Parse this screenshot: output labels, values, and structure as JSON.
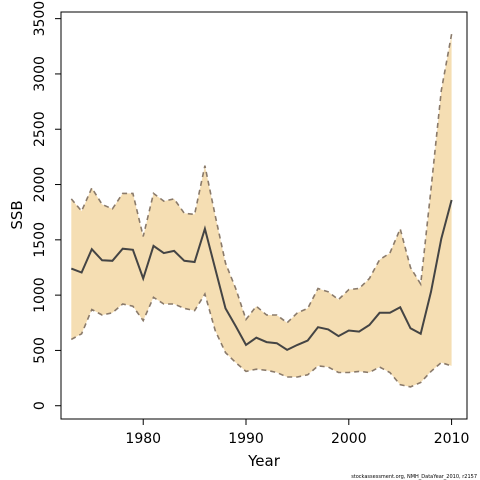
{
  "chart_data": {
    "type": "line",
    "xlabel": "Year",
    "ylabel": "SSB",
    "xlim": [
      1972,
      2011.5
    ],
    "ylim": [
      -120,
      3560
    ],
    "x_ticks": [
      1980,
      1990,
      2000,
      2010
    ],
    "y_ticks": [
      0,
      500,
      1000,
      1500,
      2000,
      2500,
      3000,
      3500
    ],
    "grid": false,
    "legend": "none",
    "colors": {
      "band": "#f5deb3",
      "ssb_line": "#444444",
      "bounds": "#8a7a6a",
      "axis": "#000000"
    },
    "x": [
      1973,
      1974,
      1975,
      1976,
      1977,
      1978,
      1979,
      1980,
      1981,
      1982,
      1983,
      1984,
      1985,
      1986,
      1987,
      1988,
      1989,
      1990,
      1991,
      1992,
      1993,
      1994,
      1995,
      1996,
      1997,
      1998,
      1999,
      2000,
      2001,
      2002,
      2003,
      2004,
      2005,
      2006,
      2007,
      2008,
      2009,
      2010
    ],
    "series": [
      {
        "name": "",
        "role": "estimate",
        "values": [
          1240,
          1205,
          1415,
          1315,
          1310,
          1420,
          1410,
          1150,
          1445,
          1380,
          1400,
          1310,
          1300,
          1600,
          1240,
          880,
          720,
          550,
          615,
          575,
          565,
          505,
          550,
          590,
          710,
          690,
          630,
          680,
          670,
          730,
          840,
          840,
          890,
          700,
          650,
          1030,
          1510,
          1860
        ]
      },
      {
        "name": "",
        "role": "upper",
        "values": [
          1870,
          1760,
          1970,
          1820,
          1780,
          1920,
          1920,
          1530,
          1920,
          1850,
          1870,
          1740,
          1730,
          2170,
          1720,
          1290,
          1060,
          780,
          900,
          820,
          820,
          750,
          840,
          880,
          1060,
          1030,
          960,
          1050,
          1060,
          1150,
          1320,
          1380,
          1600,
          1250,
          1100,
          1960,
          2850,
          3360
        ]
      },
      {
        "name": "",
        "role": "lower",
        "values": [
          600,
          650,
          870,
          820,
          840,
          920,
          900,
          770,
          980,
          920,
          920,
          880,
          860,
          1010,
          680,
          480,
          390,
          310,
          330,
          320,
          300,
          260,
          260,
          280,
          360,
          350,
          300,
          300,
          310,
          300,
          350,
          300,
          190,
          170,
          210,
          310,
          390,
          360
        ]
      }
    ],
    "footnote": "stockassessment.org, NMH_DataYear_2010, r2157"
  }
}
